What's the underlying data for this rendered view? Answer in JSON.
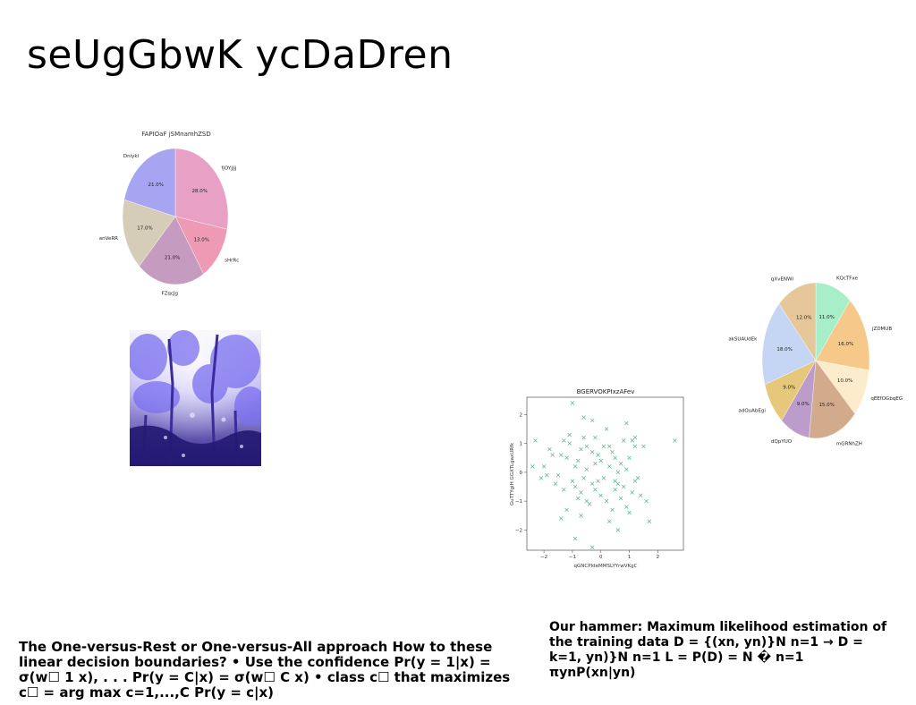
{
  "slide": {
    "title": "seUgGbwK ycDaDren",
    "left_text": "The One-versus-Rest or One-versus-All approach How to these linear decision boundaries? • Use the confidence Pr(y = 1|x) = σ(w☐ 1 x), . . . Pr(y = C|x) = σ(w☐ C x) • class c☐ that maximizes c☐ = arg max c=1,...,C Pr(y = c|x)",
    "right_text": "Our hammer: Maximum likelihood estimation of the training data D = {(xn, yn)}N n=1 → D = k=1, yn)}N n=1 L = P(D) = N � n=1 πynP(xn|yn)"
  },
  "chart_data": [
    {
      "type": "pie",
      "title": "FAPIOaF jSMnamhZSD",
      "slices": [
        {
          "label": "fjOYjJjj",
          "value": 28.0,
          "pct_label": "28.0%",
          "color": "#e8a0c4"
        },
        {
          "label": "sHrRc",
          "value": 13.0,
          "pct_label": "13.0%",
          "color": "#ef9ab5"
        },
        {
          "label": "FZqcJg",
          "value": 21.0,
          "pct_label": "21.0%",
          "color": "#c69bc0"
        },
        {
          "label": "anVeRR",
          "value": 17.0,
          "pct_label": "17.0%",
          "color": "#d6cdb8"
        },
        {
          "label": "Dniyki",
          "value": 21.0,
          "pct_label": "21.0%",
          "color": "#a7a4f2"
        }
      ]
    },
    {
      "type": "pie",
      "title": "",
      "slices": [
        {
          "label": "KQcTFxe",
          "value": 11.0,
          "pct_label": "11.0%",
          "color": "#a6efc9"
        },
        {
          "label": "jZDMUB",
          "value": 16.0,
          "pct_label": "16.0%",
          "color": "#f6c98a"
        },
        {
          "label": "qEEfOGbqEG",
          "value": 10.0,
          "pct_label": "10.0%",
          "color": "#fdeccb"
        },
        {
          "label": "mGRNhZH",
          "value": 15.0,
          "pct_label": "15.0%",
          "color": "#d2ab8d"
        },
        {
          "label": "dQpYUO",
          "value": 9.0,
          "pct_label": "9.0%",
          "color": "#bb9ccb"
        },
        {
          "label": "adOuAbEgi",
          "value": 9.0,
          "pct_label": "9.0%",
          "color": "#e6c87a"
        },
        {
          "label": "akSUAUdEk",
          "value": 18.0,
          "pct_label": "18.0%",
          "color": "#c4d6f3"
        },
        {
          "label": "qXvENWI",
          "value": 12.0,
          "pct_label": "12.0%",
          "color": "#e6c799"
        }
      ]
    },
    {
      "type": "scatter",
      "title": "BGERVOKPIxzAFev",
      "xlabel": "qGNCPIdeMMSLYYrwVKgC",
      "ylabel": "GuTTYgiH GGXTLgaxURfk",
      "xlim": [
        -2.6,
        2.9
      ],
      "ylim": [
        -2.7,
        2.6
      ],
      "xticks": [
        -2,
        -1,
        0,
        1,
        2
      ],
      "yticks": [
        -2,
        -1,
        0,
        1,
        2
      ],
      "marker": "x",
      "color": "#55b589",
      "points": [
        [
          -1.2,
          0.5
        ],
        [
          -0.9,
          0.2
        ],
        [
          -0.7,
          0.8
        ],
        [
          -0.5,
          0.1
        ],
        [
          -0.3,
          -0.4
        ],
        [
          -0.1,
          0.6
        ],
        [
          0.1,
          -0.2
        ],
        [
          0.3,
          0.9
        ],
        [
          0.5,
          -0.6
        ],
        [
          0.7,
          0.3
        ],
        [
          -1.5,
          -0.1
        ],
        [
          -1.1,
          1.0
        ],
        [
          -0.8,
          -0.9
        ],
        [
          -0.6,
          1.2
        ],
        [
          -0.4,
          -1.1
        ],
        [
          -0.2,
          0.3
        ],
        [
          0.0,
          -0.8
        ],
        [
          0.2,
          1.5
        ],
        [
          0.4,
          -1.3
        ],
        [
          0.6,
          0.0
        ],
        [
          -2.0,
          0.2
        ],
        [
          -1.8,
          0.8
        ],
        [
          -1.6,
          -0.4
        ],
        [
          -1.4,
          0.6
        ],
        [
          -1.3,
          1.1
        ],
        [
          -1.0,
          -0.3
        ],
        [
          -0.7,
          -1.5
        ],
        [
          -0.5,
          0.9
        ],
        [
          -0.2,
          1.2
        ],
        [
          0.0,
          0.4
        ],
        [
          0.2,
          -1.0
        ],
        [
          0.4,
          0.7
        ],
        [
          0.6,
          -0.4
        ],
        [
          0.8,
          1.1
        ],
        [
          0.9,
          -1.2
        ],
        [
          1.0,
          0.5
        ],
        [
          1.1,
          -0.7
        ],
        [
          1.2,
          1.2
        ],
        [
          1.3,
          -0.2
        ],
        [
          1.5,
          0.9
        ],
        [
          1.6,
          -1.0
        ],
        [
          1.7,
          -1.7
        ],
        [
          -2.3,
          1.1
        ],
        [
          -2.4,
          0.2
        ],
        [
          -2.1,
          -0.2
        ],
        [
          -1.9,
          -0.1
        ],
        [
          -1.7,
          0.6
        ],
        [
          -1.3,
          -0.6
        ],
        [
          -1.2,
          -1.3
        ],
        [
          -1.1,
          1.3
        ],
        [
          -0.9,
          -0.5
        ],
        [
          -0.8,
          0.4
        ],
        [
          -0.6,
          -0.2
        ],
        [
          -0.5,
          -1.0
        ],
        [
          -0.3,
          0.7
        ],
        [
          -0.1,
          -0.3
        ],
        [
          0.1,
          0.9
        ],
        [
          0.3,
          -1.7
        ],
        [
          0.5,
          0.5
        ],
        [
          0.7,
          -0.9
        ],
        [
          0.8,
          -0.5
        ],
        [
          0.9,
          0.1
        ],
        [
          1.0,
          -1.4
        ],
        [
          1.1,
          1.1
        ],
        [
          1.2,
          -0.3
        ],
        [
          1.4,
          -0.8
        ],
        [
          -1.0,
          2.4
        ],
        [
          -0.6,
          1.9
        ],
        [
          -0.3,
          1.8
        ],
        [
          0.6,
          -2.0
        ],
        [
          -0.9,
          -2.3
        ],
        [
          -0.3,
          -2.6
        ],
        [
          2.6,
          1.1
        ],
        [
          0.9,
          1.7
        ],
        [
          1.2,
          0.9
        ],
        [
          -1.4,
          -1.6
        ],
        [
          -0.7,
          -0.7
        ],
        [
          0.3,
          0.2
        ],
        [
          -0.2,
          -0.6
        ],
        [
          0.5,
          -0.3
        ]
      ]
    }
  ]
}
